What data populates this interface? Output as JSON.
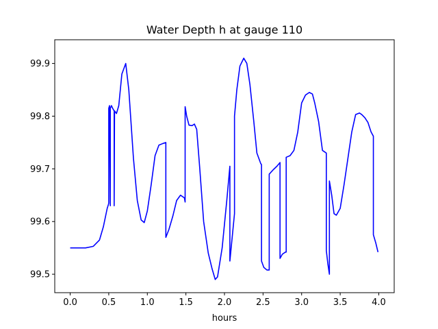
{
  "chart_data": {
    "type": "line",
    "title": "Water Depth h at gauge 110",
    "xlabel": "hours",
    "ylabel": "",
    "xlim": [
      -0.2,
      4.2
    ],
    "ylim": [
      99.465,
      99.945
    ],
    "grid": false,
    "legend": "none",
    "x_ticks": [
      "0.0",
      "0.5",
      "1.0",
      "1.5",
      "2.0",
      "2.5",
      "3.0",
      "3.5",
      "4.0"
    ],
    "y_ticks": [
      "99.5",
      "99.6",
      "99.7",
      "99.8",
      "99.9"
    ],
    "line_color": "#0000ff",
    "series": [
      {
        "x": [
          0.0,
          0.1,
          0.2,
          0.3,
          0.38,
          0.43,
          0.48,
          0.495,
          0.5,
          0.5,
          0.51,
          0.52,
          0.52,
          0.535,
          0.55,
          0.57,
          0.57,
          0.575,
          0.6,
          0.63,
          0.67,
          0.72,
          0.76,
          0.82,
          0.87,
          0.92,
          0.96,
          1.0,
          1.05,
          1.1,
          1.15,
          1.2,
          1.24,
          1.24,
          1.28,
          1.33,
          1.38,
          1.43,
          1.48,
          1.49,
          1.49,
          1.51,
          1.54,
          1.58,
          1.61,
          1.64,
          1.68,
          1.73,
          1.79,
          1.84,
          1.88,
          1.91,
          1.97,
          2.03,
          2.07,
          2.07,
          2.1,
          2.13,
          2.13,
          2.16,
          2.2,
          2.25,
          2.29,
          2.33,
          2.38,
          2.42,
          2.47,
          2.48,
          2.48,
          2.51,
          2.55,
          2.58,
          2.58,
          2.63,
          2.68,
          2.72,
          2.72,
          2.75,
          2.79,
          2.8,
          2.8,
          2.85,
          2.9,
          2.95,
          3.0,
          3.05,
          3.1,
          3.14,
          3.17,
          3.22,
          3.27,
          3.32,
          3.32,
          3.34,
          3.36,
          3.36,
          3.39,
          3.42,
          3.45,
          3.5,
          3.55,
          3.6,
          3.65,
          3.7,
          3.75,
          3.78,
          3.82,
          3.86,
          3.9,
          3.93,
          3.93,
          3.96,
          3.99
        ],
        "y": [
          99.55,
          99.55,
          99.55,
          99.553,
          99.565,
          99.59,
          99.625,
          99.632,
          99.635,
          99.815,
          99.82,
          99.63,
          99.815,
          99.82,
          99.815,
          99.81,
          99.63,
          99.81,
          99.805,
          99.82,
          99.88,
          99.9,
          99.85,
          99.72,
          99.64,
          99.603,
          99.598,
          99.62,
          99.67,
          99.725,
          99.745,
          99.748,
          99.75,
          99.57,
          99.585,
          99.61,
          99.64,
          99.65,
          99.645,
          99.637,
          99.818,
          99.8,
          99.783,
          99.782,
          99.785,
          99.775,
          99.7,
          99.6,
          99.54,
          99.51,
          99.49,
          99.495,
          99.55,
          99.64,
          99.705,
          99.525,
          99.57,
          99.615,
          99.8,
          99.85,
          99.895,
          99.91,
          99.9,
          99.86,
          99.79,
          99.73,
          99.71,
          99.708,
          99.525,
          99.513,
          99.508,
          99.508,
          99.69,
          99.698,
          99.705,
          99.712,
          99.53,
          99.538,
          99.542,
          99.542,
          99.722,
          99.725,
          99.735,
          99.77,
          99.825,
          99.84,
          99.845,
          99.842,
          99.825,
          99.79,
          99.735,
          99.73,
          99.545,
          99.52,
          99.5,
          99.677,
          99.65,
          99.615,
          99.612,
          99.625,
          99.67,
          99.72,
          99.77,
          99.803,
          99.806,
          99.803,
          99.797,
          99.788,
          99.77,
          99.762,
          99.575,
          99.56,
          99.542
        ]
      }
    ]
  }
}
